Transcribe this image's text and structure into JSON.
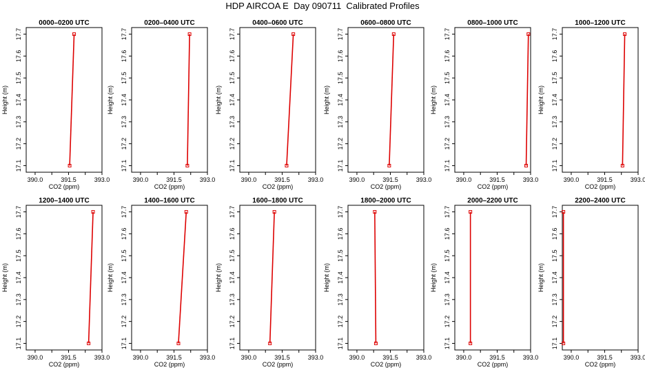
{
  "figure": {
    "title": "HDP AIRCOA E  Day 090711  Calibrated Profiles"
  },
  "colors": {
    "profile_line": "#dd0000",
    "marker": "#dd0000",
    "axis": "#000000"
  },
  "chart_data": [
    {
      "type": "line",
      "title": "0000–0200 UTC",
      "xlabel": "CO2 (ppm)",
      "ylabel": "Height (m)",
      "xlim": [
        389.6,
        393.0
      ],
      "ylim": [
        17.07,
        17.73
      ],
      "xticks": [
        "390.0",
        "391.5",
        "393.0"
      ],
      "yticks": [
        "17.1",
        "17.2",
        "17.3",
        "17.4",
        "17.5",
        "17.6",
        "17.7"
      ],
      "series": [
        {
          "x": [
            391.55,
            391.75
          ],
          "y": [
            17.1,
            17.7
          ]
        }
      ]
    },
    {
      "type": "line",
      "title": "0200–0400 UTC",
      "xlabel": "CO2 (ppm)",
      "ylabel": "Height (m)",
      "xlim": [
        389.6,
        393.0
      ],
      "ylim": [
        17.07,
        17.73
      ],
      "xticks": [
        "390.0",
        "391.5",
        "393.0"
      ],
      "yticks": [
        "17.1",
        "17.2",
        "17.3",
        "17.4",
        "17.5",
        "17.6",
        "17.7"
      ],
      "series": [
        {
          "x": [
            392.1,
            392.2
          ],
          "y": [
            17.1,
            17.7
          ]
        }
      ]
    },
    {
      "type": "line",
      "title": "0400–0600 UTC",
      "xlabel": "CO2 (ppm)",
      "ylabel": "Height (m)",
      "xlim": [
        389.6,
        393.0
      ],
      "ylim": [
        17.07,
        17.73
      ],
      "xticks": [
        "390.0",
        "391.5",
        "393.0"
      ],
      "yticks": [
        "17.1",
        "17.2",
        "17.3",
        "17.4",
        "17.5",
        "17.6",
        "17.7"
      ],
      "series": [
        {
          "x": [
            391.7,
            392.0
          ],
          "y": [
            17.1,
            17.7
          ]
        }
      ]
    },
    {
      "type": "line",
      "title": "0600–0800 UTC",
      "xlabel": "CO2 (ppm)",
      "ylabel": "Height (m)",
      "xlim": [
        389.6,
        393.0
      ],
      "ylim": [
        17.07,
        17.73
      ],
      "xticks": [
        "390.0",
        "391.5",
        "393.0"
      ],
      "yticks": [
        "17.1",
        "17.2",
        "17.3",
        "17.4",
        "17.5",
        "17.6",
        "17.7"
      ],
      "series": [
        {
          "x": [
            391.45,
            391.65
          ],
          "y": [
            17.1,
            17.7
          ]
        }
      ]
    },
    {
      "type": "line",
      "title": "0800–1000 UTC",
      "xlabel": "CO2 (ppm)",
      "ylabel": "Height (m)",
      "xlim": [
        389.6,
        393.0
      ],
      "ylim": [
        17.07,
        17.73
      ],
      "xticks": [
        "390.0",
        "391.5",
        "393.0"
      ],
      "yticks": [
        "17.1",
        "17.2",
        "17.3",
        "17.4",
        "17.5",
        "17.6",
        "17.7"
      ],
      "series": [
        {
          "x": [
            392.8,
            392.9
          ],
          "y": [
            17.1,
            17.7
          ]
        }
      ]
    },
    {
      "type": "line",
      "title": "1000–1200 UTC",
      "xlabel": "CO2 (ppm)",
      "ylabel": "Height (m)",
      "xlim": [
        389.6,
        393.0
      ],
      "ylim": [
        17.07,
        17.73
      ],
      "xticks": [
        "390.0",
        "391.5",
        "393.0"
      ],
      "yticks": [
        "17.1",
        "17.2",
        "17.3",
        "17.4",
        "17.5",
        "17.6",
        "17.7"
      ],
      "series": [
        {
          "x": [
            392.3,
            392.4
          ],
          "y": [
            17.1,
            17.7
          ]
        }
      ]
    },
    {
      "type": "line",
      "title": "1200–1400 UTC",
      "xlabel": "CO2 (ppm)",
      "ylabel": "Height (m)",
      "xlim": [
        389.6,
        393.0
      ],
      "ylim": [
        17.07,
        17.73
      ],
      "xticks": [
        "390.0",
        "391.5",
        "393.0"
      ],
      "yticks": [
        "17.1",
        "17.2",
        "17.3",
        "17.4",
        "17.5",
        "17.6",
        "17.7"
      ],
      "series": [
        {
          "x": [
            392.4,
            392.6
          ],
          "y": [
            17.1,
            17.7
          ]
        }
      ]
    },
    {
      "type": "line",
      "title": "1400–1600 UTC",
      "xlabel": "CO2 (ppm)",
      "ylabel": "Height (m)",
      "xlim": [
        389.6,
        393.0
      ],
      "ylim": [
        17.07,
        17.73
      ],
      "xticks": [
        "390.0",
        "391.5",
        "393.0"
      ],
      "yticks": [
        "17.1",
        "17.2",
        "17.3",
        "17.4",
        "17.5",
        "17.6",
        "17.7"
      ],
      "series": [
        {
          "x": [
            391.7,
            392.05
          ],
          "y": [
            17.1,
            17.7
          ]
        }
      ]
    },
    {
      "type": "line",
      "title": "1600–1800 UTC",
      "xlabel": "CO2 (ppm)",
      "ylabel": "Height (m)",
      "xlim": [
        389.6,
        393.0
      ],
      "ylim": [
        17.07,
        17.73
      ],
      "xticks": [
        "390.0",
        "391.5",
        "393.0"
      ],
      "yticks": [
        "17.1",
        "17.2",
        "17.3",
        "17.4",
        "17.5",
        "17.6",
        "17.7"
      ],
      "series": [
        {
          "x": [
            390.95,
            391.15
          ],
          "y": [
            17.1,
            17.7
          ]
        }
      ]
    },
    {
      "type": "line",
      "title": "1800–2000 UTC",
      "xlabel": "CO2 (ppm)",
      "ylabel": "Height (m)",
      "xlim": [
        389.6,
        393.0
      ],
      "ylim": [
        17.07,
        17.73
      ],
      "xticks": [
        "390.0",
        "391.5",
        "393.0"
      ],
      "yticks": [
        "17.1",
        "17.2",
        "17.3",
        "17.4",
        "17.5",
        "17.6",
        "17.7"
      ],
      "series": [
        {
          "x": [
            390.85,
            390.8
          ],
          "y": [
            17.1,
            17.7
          ]
        }
      ]
    },
    {
      "type": "line",
      "title": "2000–2200 UTC",
      "xlabel": "CO2 (ppm)",
      "ylabel": "Height (m)",
      "xlim": [
        389.6,
        393.0
      ],
      "ylim": [
        17.07,
        17.73
      ],
      "xticks": [
        "390.0",
        "391.5",
        "393.0"
      ],
      "yticks": [
        "17.1",
        "17.2",
        "17.3",
        "17.4",
        "17.5",
        "17.6",
        "17.7"
      ],
      "series": [
        {
          "x": [
            390.3,
            390.3
          ],
          "y": [
            17.1,
            17.7
          ]
        }
      ]
    },
    {
      "type": "line",
      "title": "2200–2400 UTC",
      "xlabel": "CO2 (ppm)",
      "ylabel": "Height (m)",
      "xlim": [
        389.6,
        393.0
      ],
      "ylim": [
        17.07,
        17.73
      ],
      "xticks": [
        "390.0",
        "391.5",
        "393.0"
      ],
      "yticks": [
        "17.1",
        "17.2",
        "17.3",
        "17.4",
        "17.5",
        "17.6",
        "17.7"
      ],
      "series": [
        {
          "x": [
            389.65,
            389.65
          ],
          "y": [
            17.1,
            17.7
          ]
        }
      ]
    }
  ]
}
